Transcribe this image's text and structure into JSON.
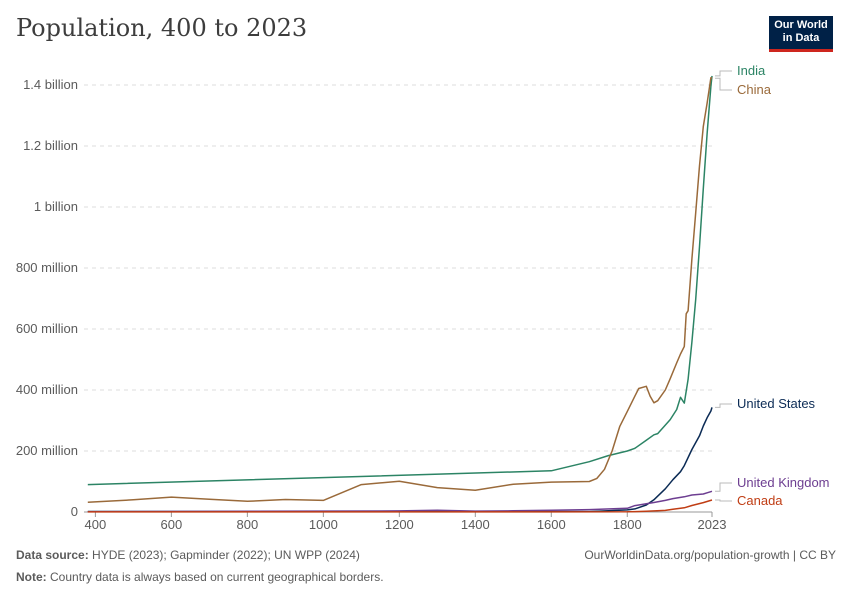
{
  "header": {
    "title": "Population, 400 to 2023",
    "logo_line1": "Our World",
    "logo_line2": "in Data"
  },
  "footer": {
    "source_label": "Data source:",
    "source_text": "HYDE (2023); Gapminder (2022); UN WPP (2024)",
    "note_label": "Note:",
    "note_text": "Country data is always based on current geographical borders.",
    "credit": "OurWorldinData.org/population-growth | CC BY"
  },
  "chart_data": {
    "type": "line",
    "title": "Population, 400 to 2023",
    "xlabel": "",
    "ylabel": "",
    "xlim": [
      370,
      2023
    ],
    "ylim": [
      0,
      1400000000
    ],
    "grid": true,
    "x_ticks": [
      {
        "value": 400,
        "label": "400"
      },
      {
        "value": 600,
        "label": "600"
      },
      {
        "value": 800,
        "label": "800"
      },
      {
        "value": 1000,
        "label": "1000"
      },
      {
        "value": 1200,
        "label": "1200"
      },
      {
        "value": 1400,
        "label": "1400"
      },
      {
        "value": 1600,
        "label": "1600"
      },
      {
        "value": 1800,
        "label": "1800"
      },
      {
        "value": 2023,
        "label": "2023"
      }
    ],
    "y_ticks": [
      {
        "value": 0,
        "label": "0"
      },
      {
        "value": 200000000,
        "label": "200 million"
      },
      {
        "value": 400000000,
        "label": "400 million"
      },
      {
        "value": 600000000,
        "label": "600 million"
      },
      {
        "value": 800000000,
        "label": "800 million"
      },
      {
        "value": 1000000000,
        "label": "1 billion"
      },
      {
        "value": 1200000000,
        "label": "1.2 billion"
      },
      {
        "value": 1400000000,
        "label": "1.4 billion"
      }
    ],
    "series": [
      {
        "name": "India",
        "color": "#2c8465",
        "points": [
          [
            380,
            90000000
          ],
          [
            1600,
            135000000
          ],
          [
            1700,
            165000000
          ],
          [
            1750,
            185000000
          ],
          [
            1800,
            200000000
          ],
          [
            1820,
            209000000
          ],
          [
            1850,
            235000000
          ],
          [
            1870,
            253000000
          ],
          [
            1880,
            257000000
          ],
          [
            1900,
            285000000
          ],
          [
            1913,
            303000000
          ],
          [
            1930,
            336000000
          ],
          [
            1940,
            376000000
          ],
          [
            1950,
            357000000
          ],
          [
            1960,
            435000000
          ],
          [
            1970,
            557000000
          ],
          [
            1980,
            697000000
          ],
          [
            1990,
            870000000
          ],
          [
            2000,
            1060000000
          ],
          [
            2010,
            1240000000
          ],
          [
            2020,
            1396000000
          ],
          [
            2023,
            1430000000
          ]
        ]
      },
      {
        "name": "China",
        "color": "#9a6a3a",
        "points": [
          [
            380,
            32000000
          ],
          [
            500,
            40000000
          ],
          [
            600,
            49000000
          ],
          [
            700,
            42000000
          ],
          [
            800,
            35000000
          ],
          [
            900,
            41000000
          ],
          [
            1000,
            38000000
          ],
          [
            1100,
            90000000
          ],
          [
            1200,
            101000000
          ],
          [
            1300,
            80000000
          ],
          [
            1400,
            71000000
          ],
          [
            1500,
            91000000
          ],
          [
            1600,
            98000000
          ],
          [
            1700,
            100000000
          ],
          [
            1720,
            110000000
          ],
          [
            1740,
            140000000
          ],
          [
            1760,
            200000000
          ],
          [
            1780,
            280000000
          ],
          [
            1800,
            330000000
          ],
          [
            1820,
            380000000
          ],
          [
            1830,
            405000000
          ],
          [
            1850,
            412000000
          ],
          [
            1860,
            380000000
          ],
          [
            1870,
            358000000
          ],
          [
            1880,
            365000000
          ],
          [
            1900,
            400000000
          ],
          [
            1913,
            437000000
          ],
          [
            1930,
            489000000
          ],
          [
            1940,
            518000000
          ],
          [
            1950,
            543000000
          ],
          [
            1955,
            650000000
          ],
          [
            1960,
            660000000
          ],
          [
            1970,
            830000000
          ],
          [
            1980,
            981000000
          ],
          [
            1990,
            1135000000
          ],
          [
            2000,
            1264000000
          ],
          [
            2010,
            1340000000
          ],
          [
            2020,
            1424000000
          ],
          [
            2023,
            1422000000
          ]
        ]
      },
      {
        "name": "United States",
        "color": "#0b2b55",
        "points": [
          [
            380,
            1500000
          ],
          [
            1600,
            1500000
          ],
          [
            1700,
            1200000
          ],
          [
            1800,
            7000000
          ],
          [
            1820,
            10000000
          ],
          [
            1850,
            23000000
          ],
          [
            1870,
            40000000
          ],
          [
            1900,
            76000000
          ],
          [
            1920,
            106000000
          ],
          [
            1940,
            132000000
          ],
          [
            1950,
            152000000
          ],
          [
            1970,
            205000000
          ],
          [
            1990,
            250000000
          ],
          [
            2000,
            282000000
          ],
          [
            2010,
            309000000
          ],
          [
            2020,
            331000000
          ],
          [
            2023,
            343000000
          ]
        ]
      },
      {
        "name": "United Kingdom",
        "color": "#6d3e91",
        "points": [
          [
            380,
            1000000
          ],
          [
            1200,
            3500000
          ],
          [
            1300,
            6000000
          ],
          [
            1400,
            3000000
          ],
          [
            1500,
            4000000
          ],
          [
            1600,
            6000000
          ],
          [
            1700,
            8000000
          ],
          [
            1800,
            12000000
          ],
          [
            1820,
            21000000
          ],
          [
            1850,
            27000000
          ],
          [
            1870,
            31000000
          ],
          [
            1900,
            38000000
          ],
          [
            1920,
            44000000
          ],
          [
            1950,
            50000000
          ],
          [
            1970,
            55600000
          ],
          [
            2000,
            59000000
          ],
          [
            2010,
            63000000
          ],
          [
            2023,
            68000000
          ]
        ]
      },
      {
        "name": "Canada",
        "color": "#c03d14",
        "points": [
          [
            380,
            300000
          ],
          [
            1600,
            300000
          ],
          [
            1800,
            500000
          ],
          [
            1850,
            2400000
          ],
          [
            1900,
            5300000
          ],
          [
            1920,
            8800000
          ],
          [
            1950,
            13700000
          ],
          [
            1970,
            21300000
          ],
          [
            2000,
            30700000
          ],
          [
            2023,
            39300000
          ]
        ]
      }
    ]
  }
}
